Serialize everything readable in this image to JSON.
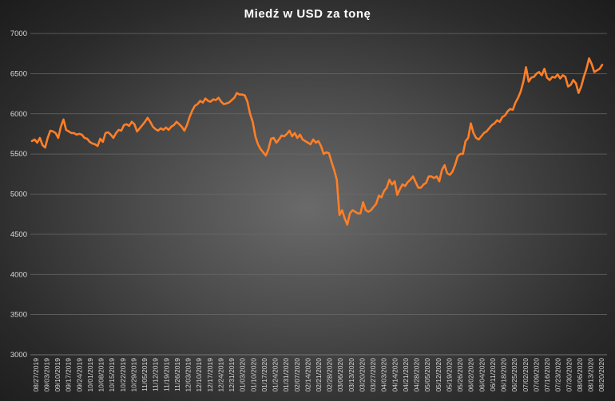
{
  "chart_data": {
    "type": "line",
    "title": "Miedź  w USD za tonę",
    "xlabel": "",
    "ylabel": "",
    "ylim": [
      3000,
      7000
    ],
    "yticks": [
      3000,
      3500,
      4000,
      4500,
      5000,
      5500,
      6000,
      6500,
      7000
    ],
    "grid": true,
    "legend": "none",
    "line_color": "#ff7f27",
    "x_tick_labels": [
      "08/27/2019",
      "09/03/2019",
      "09/10/2019",
      "09/17/2019",
      "09/24/2019",
      "10/01/2019",
      "10/08/2019",
      "10/15/2019",
      "10/22/2019",
      "10/29/2019",
      "11/05/2019",
      "11/12/2019",
      "11/19/2019",
      "11/26/2019",
      "12/03/2019",
      "12/10/2019",
      "12/17/2019",
      "12/24/2019",
      "12/31/2019",
      "01/03/2020",
      "01/10/2020",
      "01/17/2020",
      "01/24/2020",
      "01/31/2020",
      "02/07/2020",
      "02/14/2020",
      "02/21/2020",
      "02/28/2020",
      "03/06/2020",
      "03/13/2020",
      "03/20/2020",
      "03/27/2020",
      "04/03/2020",
      "04/14/2020",
      "04/21/2020",
      "04/28/2020",
      "05/05/2020",
      "05/12/2020",
      "05/19/2020",
      "05/26/2020",
      "06/02/2020",
      "06/04/2020",
      "06/11/2020",
      "06/18/2020",
      "06/25/2020",
      "07/02/2020",
      "07/09/2020",
      "07/16/2020",
      "07/23/2020",
      "07/30/2020",
      "08/06/2020",
      "08/13/2020",
      "08/20/2020"
    ],
    "values": [
      5660,
      5680,
      5640,
      5700,
      5610,
      5580,
      5700,
      5790,
      5780,
      5760,
      5700,
      5840,
      5930,
      5800,
      5780,
      5760,
      5760,
      5740,
      5750,
      5740,
      5700,
      5690,
      5650,
      5630,
      5620,
      5600,
      5690,
      5650,
      5760,
      5770,
      5740,
      5700,
      5760,
      5800,
      5790,
      5860,
      5870,
      5850,
      5900,
      5870,
      5780,
      5820,
      5860,
      5900,
      5950,
      5900,
      5840,
      5810,
      5790,
      5820,
      5800,
      5830,
      5800,
      5840,
      5860,
      5900,
      5870,
      5840,
      5790,
      5860,
      5960,
      6040,
      6100,
      6120,
      6160,
      6140,
      6190,
      6160,
      6150,
      6180,
      6170,
      6200,
      6150,
      6120,
      6130,
      6140,
      6170,
      6200,
      6260,
      6240,
      6240,
      6230,
      6150,
      6000,
      5900,
      5720,
      5620,
      5560,
      5520,
      5480,
      5560,
      5690,
      5700,
      5640,
      5680,
      5730,
      5720,
      5750,
      5790,
      5720,
      5760,
      5700,
      5740,
      5680,
      5660,
      5640,
      5620,
      5680,
      5640,
      5660,
      5600,
      5500,
      5520,
      5510,
      5400,
      5300,
      5180,
      4740,
      4800,
      4700,
      4620,
      4760,
      4800,
      4780,
      4760,
      4760,
      4900,
      4800,
      4780,
      4800,
      4840,
      4880,
      4980,
      4960,
      5040,
      5080,
      5180,
      5120,
      5160,
      4990,
      5060,
      5120,
      5100,
      5150,
      5180,
      5220,
      5150,
      5080,
      5080,
      5120,
      5140,
      5220,
      5220,
      5200,
      5220,
      5160,
      5300,
      5360,
      5260,
      5240,
      5280,
      5360,
      5470,
      5500,
      5500,
      5660,
      5700,
      5880,
      5760,
      5700,
      5680,
      5720,
      5760,
      5780,
      5820,
      5860,
      5880,
      5920,
      5900,
      5960,
      5980,
      6030,
      6060,
      6050,
      6140,
      6200,
      6280,
      6400,
      6580,
      6400,
      6450,
      6460,
      6500,
      6520,
      6480,
      6560,
      6450,
      6420,
      6460,
      6450,
      6490,
      6440,
      6480,
      6460,
      6340,
      6360,
      6420,
      6380,
      6260,
      6340,
      6460,
      6560,
      6690,
      6620,
      6520,
      6540,
      6560,
      6610
    ]
  }
}
